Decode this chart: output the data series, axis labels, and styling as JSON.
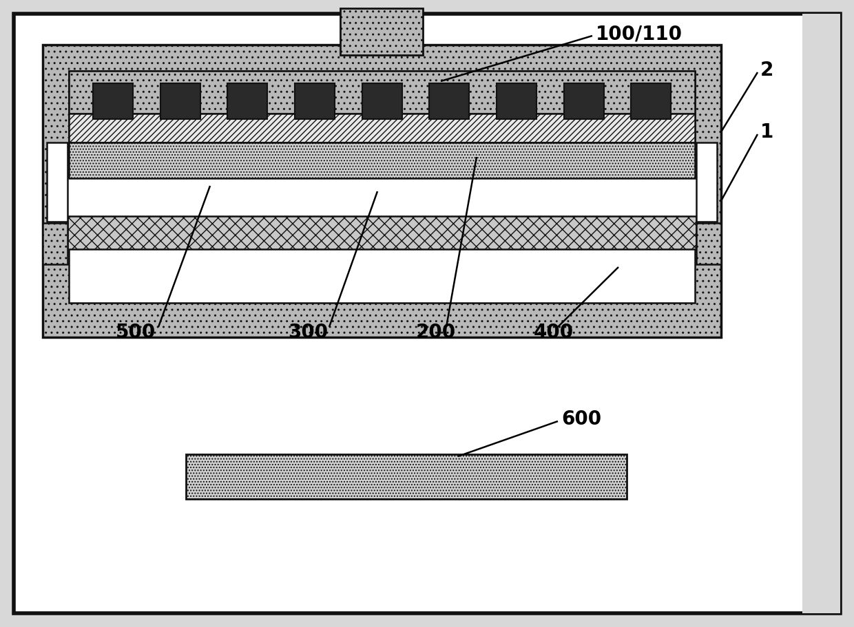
{
  "fig_w": 12.4,
  "fig_h": 9.11,
  "dpi": 100,
  "bg_outer": "#1a1a1a",
  "bg_inner": "#ffffff",
  "bg_frame": "#d8d8d8",
  "gray_stipple": "#b8b8b8",
  "hatch_diag_fc": "#e8e8e8",
  "dot_fc": "#d0d0d0",
  "cross_fc": "#c8c8c8",
  "dark_nozzle": "#2a2a2a",
  "white": "#ffffff",
  "black": "#111111",
  "label_fs": 20,
  "label_fw": "bold",
  "n_nozzles": 9,
  "lbl_100_110": "100/110",
  "lbl_2": "2",
  "lbl_1": "1",
  "lbl_500": "500",
  "lbl_300": "300",
  "lbl_200": "200",
  "lbl_400": "400",
  "lbl_600": "600"
}
